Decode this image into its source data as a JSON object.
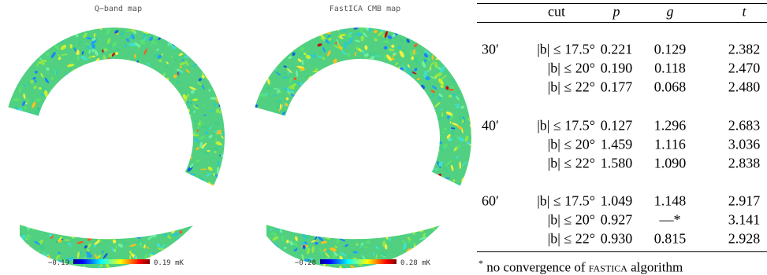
{
  "maps": [
    {
      "title": "Q−band map",
      "min_label": "−0.19",
      "max_label": "0.19 mK"
    },
    {
      "title": "FastICA CMB map",
      "min_label": "−0.28",
      "max_label": "0.28 mK"
    }
  ],
  "table": {
    "header": {
      "cut": "cut",
      "p": "p",
      "g": "g",
      "t": "t"
    },
    "groups": [
      {
        "beam": "30′",
        "rows": [
          {
            "cut": "|b| ≤ 17.5°",
            "p": "0.221",
            "g": "0.129",
            "t": "2.382"
          },
          {
            "cut": "|b| ≤ 20°",
            "p": "0.190",
            "g": "0.118",
            "t": "2.470"
          },
          {
            "cut": "|b| ≤ 22°",
            "p": "0.177",
            "g": "0.068",
            "t": "2.480"
          }
        ]
      },
      {
        "beam": "40′",
        "rows": [
          {
            "cut": "|b| ≤ 17.5°",
            "p": "0.127",
            "g": "1.296",
            "t": "2.683"
          },
          {
            "cut": "|b| ≤ 20°",
            "p": "1.459",
            "g": "1.116",
            "t": "3.036"
          },
          {
            "cut": "|b| ≤ 22°",
            "p": "1.580",
            "g": "1.090",
            "t": "2.838"
          }
        ]
      },
      {
        "beam": "60′",
        "rows": [
          {
            "cut": "|b| ≤ 17.5°",
            "p": "1.049",
            "g": "1.148",
            "t": "2.917"
          },
          {
            "cut": "|b| ≤ 20°",
            "p": "0.927",
            "g": "—*",
            "t": "3.141"
          },
          {
            "cut": "|b| ≤ 22°",
            "p": "0.930",
            "g": "0.815",
            "t": "2.928"
          }
        ]
      }
    ],
    "footnote": {
      "mark": "*",
      "before": "no convergence of",
      "name": "fastica",
      "after": "algorithm"
    }
  }
}
